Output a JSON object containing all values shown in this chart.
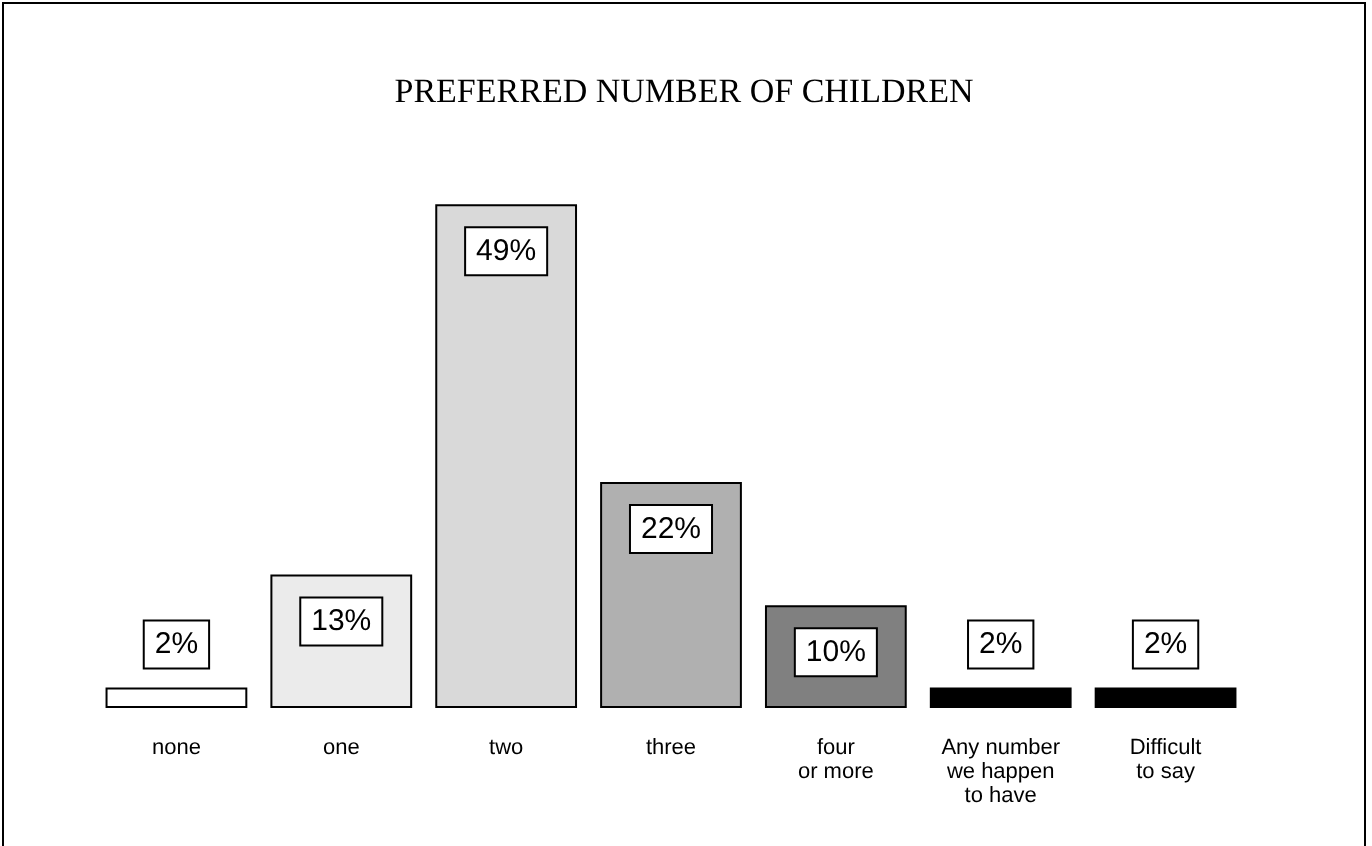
{
  "chart_data": {
    "type": "bar",
    "title": "PREFERRED NUMBER OF CHILDREN",
    "categories": [
      "none",
      "one",
      "two",
      "three",
      "four\nor more",
      "Any number\nwe happen\nto have",
      "Difficult\nto say"
    ],
    "values": [
      2,
      13,
      49,
      22,
      10,
      2,
      2
    ],
    "value_labels": [
      "2%",
      "13%",
      "49%",
      "22%",
      "10%",
      "2%",
      "2%"
    ],
    "colors": [
      "#ffffff",
      "#ebebeb",
      "#d9d9d9",
      "#b0b0b0",
      "#808080",
      "#000000",
      "#000000"
    ]
  }
}
